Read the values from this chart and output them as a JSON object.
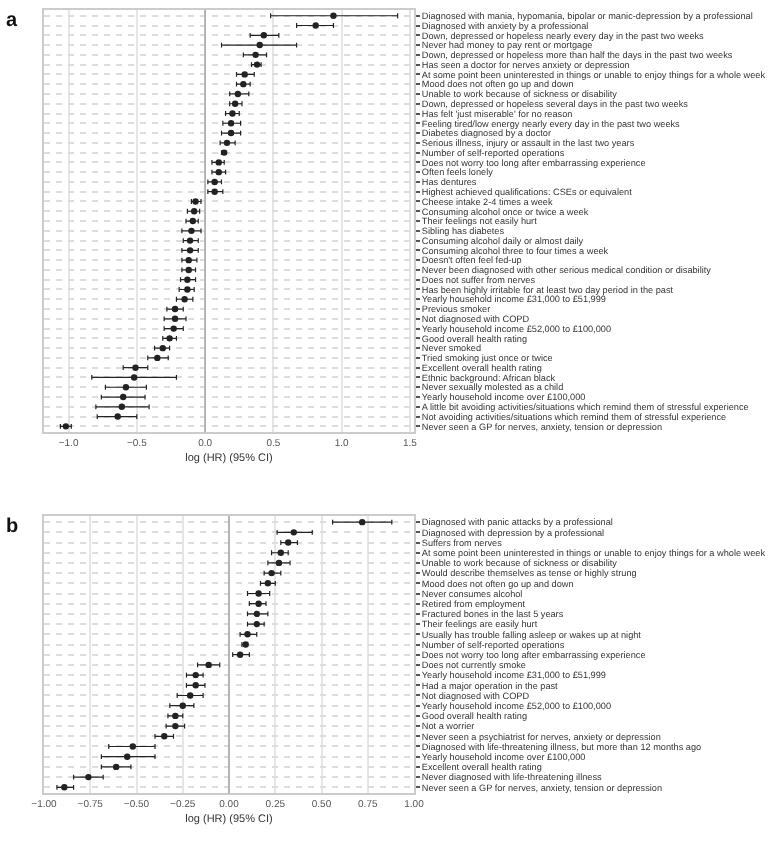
{
  "chart_data": [
    {
      "type": "scatter",
      "title": "a",
      "xlabel": "log (HR) (95% CI)",
      "orientation": "horizontal",
      "marker": "circle",
      "grid": true,
      "xlim": [
        -1.18,
        1.53
      ],
      "xticks": [
        {
          "value": -1.0,
          "label": "−1.0"
        },
        {
          "value": -0.5,
          "label": "−0.5"
        },
        {
          "value": 0.0,
          "label": "0.0"
        },
        {
          "value": 0.5,
          "label": "0.5"
        },
        {
          "value": 1.0,
          "label": "1.0"
        },
        {
          "value": 1.5,
          "label": "1.5"
        }
      ],
      "ref_lines": [
        {
          "axis": "x",
          "value": 0,
          "color": "#aaaaaa"
        }
      ],
      "categories": [
        "Diagnosed with mania, hypomania, bipolar or manic-depression by a professional",
        "Diagnosed with anxiety by a professional",
        "Down, depressed or hopeless nearly every day in the past two weeks",
        "Never had money to pay rent or mortgage",
        "Down, depressed or hopeless more than half the days in the past two weeks",
        "Has seen a doctor for nerves anxiety or depression",
        "At some point been uninterested in things or unable to enjoy things for a whole week",
        "Mood does not often go up and down",
        "Unable to work because of sickness or disability",
        "Down, depressed or hopeless several days in the past two weeks",
        "Has felt 'just miserable' for no reason",
        "Feeling tired/low energy nearly every day in the past two weeks",
        "Diabetes diagnosed by a doctor",
        "Serious illness, injury or assault in the last two years",
        "Number of self-reported operations",
        "Does not worry too long after embarrassing experience",
        "Often feels lonely",
        "Has dentures",
        "Highest achieved qualifications: CSEs or equivalent",
        "Cheese intake 2-4 times a week",
        "Consuming alcohol once or twice a week",
        "Their feelings not easily hurt",
        "Sibling has diabetes",
        "Consuming alcohol daily or almost daily",
        "Consuming alcohol three to four times a week",
        "Doesn't often feel fed-up",
        "Never been diagnosed with other serious medical condition or disability",
        "Does not suffer from nerves",
        "Has been highly irritable for at least two day period in the past",
        "Yearly household income £31,000 to £51,999",
        "Previous smoker",
        "Not diagnosed with COPD",
        "Yearly household income £52,000 to £100,000",
        "Good overall health rating",
        "Never smoked",
        "Tried smoking just once or twice",
        "Excellent overall health rating",
        "Ethnic background: African black",
        "Never sexually molested as a child",
        "Yearly household income over £100,000",
        "A little bit avoiding activities/situations which remind them of stressful experience",
        "Not avoiding activities/situations which remind them of stressful experience",
        "Never seen a GP for nerves, anxiety, tension or depression"
      ],
      "series": [
        {
          "color": "#222222",
          "values": [
            0.94,
            0.81,
            0.43,
            0.4,
            0.37,
            0.38,
            0.29,
            0.28,
            0.24,
            0.22,
            0.2,
            0.19,
            0.19,
            0.16,
            0.14,
            0.1,
            0.1,
            0.07,
            0.07,
            -0.07,
            -0.08,
            -0.09,
            -0.1,
            -0.11,
            -0.11,
            -0.12,
            -0.12,
            -0.13,
            -0.13,
            -0.15,
            -0.22,
            -0.22,
            -0.23,
            -0.26,
            -0.31,
            -0.35,
            -0.51,
            -0.52,
            -0.58,
            -0.6,
            -0.61,
            -0.64,
            -1.02
          ],
          "errors": [
            [
              0.48,
              1.41
            ],
            [
              0.67,
              0.94
            ],
            [
              0.33,
              0.54
            ],
            [
              0.12,
              0.67
            ],
            [
              0.28,
              0.45
            ],
            [
              0.34,
              0.41
            ],
            [
              0.23,
              0.36
            ],
            [
              0.23,
              0.33
            ],
            [
              0.18,
              0.32
            ],
            [
              0.18,
              0.27
            ],
            [
              0.15,
              0.25
            ],
            [
              0.13,
              0.26
            ],
            [
              0.12,
              0.26
            ],
            [
              0.11,
              0.22
            ],
            [
              0.12,
              0.15
            ],
            [
              0.05,
              0.14
            ],
            [
              0.05,
              0.15
            ],
            [
              0.02,
              0.12
            ],
            [
              0.02,
              0.13
            ],
            [
              -0.1,
              -0.03
            ],
            [
              -0.13,
              -0.04
            ],
            [
              -0.14,
              -0.05
            ],
            [
              -0.17,
              -0.03
            ],
            [
              -0.16,
              -0.05
            ],
            [
              -0.17,
              -0.05
            ],
            [
              -0.17,
              -0.06
            ],
            [
              -0.17,
              -0.07
            ],
            [
              -0.18,
              -0.07
            ],
            [
              -0.19,
              -0.08
            ],
            [
              -0.21,
              -0.09
            ],
            [
              -0.28,
              -0.16
            ],
            [
              -0.3,
              -0.14
            ],
            [
              -0.3,
              -0.16
            ],
            [
              -0.31,
              -0.21
            ],
            [
              -0.37,
              -0.26
            ],
            [
              -0.42,
              -0.27
            ],
            [
              -0.6,
              -0.42
            ],
            [
              -0.83,
              -0.21
            ],
            [
              -0.73,
              -0.43
            ],
            [
              -0.76,
              -0.44
            ],
            [
              -0.8,
              -0.41
            ],
            [
              -0.79,
              -0.5
            ],
            [
              -1.06,
              -0.98
            ]
          ]
        }
      ]
    },
    {
      "type": "scatter",
      "title": "b",
      "xlabel": "log (HR) (95% CI)",
      "orientation": "horizontal",
      "marker": "circle",
      "grid": true,
      "xlim": [
        -1.0,
        1.0
      ],
      "xticks": [
        {
          "value": -1.0,
          "label": "−1.00"
        },
        {
          "value": -0.75,
          "label": "−0.75"
        },
        {
          "value": -0.5,
          "label": "−0.50"
        },
        {
          "value": -0.25,
          "label": "−0.25"
        },
        {
          "value": 0.0,
          "label": "0.00"
        },
        {
          "value": 0.25,
          "label": "0.25"
        },
        {
          "value": 0.5,
          "label": "0.50"
        },
        {
          "value": 0.75,
          "label": "0.75"
        },
        {
          "value": 1.0,
          "label": "1.00"
        }
      ],
      "ref_lines": [
        {
          "axis": "x",
          "value": 0,
          "color": "#aaaaaa"
        }
      ],
      "categories": [
        "Diagnosed with panic attacks by a professional",
        "Diagnosed with depression by a professional",
        "Suffers from nerves",
        "At some point been uninterested in things or unable to enjoy things for a whole week",
        "Unable to work because of sickness or disability",
        "Would describe themselves as tense or highly strung",
        "Mood does not often go up and down",
        "Never consumes alcohol",
        "Retired from employment",
        "Fractured bones in the last 5 years",
        "Their feelings are easily hurt",
        "Usually has trouble falling asleep or wakes up at night",
        "Number of self-reported operations",
        "Does not worry too long after embarrassing experience",
        "Does not currently smoke",
        "Yearly household income £31,000 to £51,999",
        "Had a major operation in the past",
        "Not diagnosed with COPD",
        "Yearly household income £52,000 to £100,000",
        "Good overall health rating",
        "Not a worrier",
        "Never seen a psychiatrist for nerves, anxiety or depression",
        "Diagnosed with life-threatening illness, but more than 12 months ago",
        "Yearly household income over £100,000",
        "Excellent overall health rating",
        "Never diagnosed with life-threatening illness",
        "Never seen a GP for nerves, anxiety, tension or depression"
      ],
      "series": [
        {
          "color": "#222222",
          "values": [
            0.72,
            0.35,
            0.32,
            0.28,
            0.27,
            0.23,
            0.21,
            0.16,
            0.16,
            0.15,
            0.15,
            0.1,
            0.09,
            0.06,
            -0.11,
            -0.18,
            -0.18,
            -0.21,
            -0.25,
            -0.29,
            -0.29,
            -0.35,
            -0.52,
            -0.55,
            -0.61,
            -0.76,
            -0.89
          ],
          "errors": [
            [
              0.56,
              0.88
            ],
            [
              0.26,
              0.45
            ],
            [
              0.28,
              0.37
            ],
            [
              0.23,
              0.32
            ],
            [
              0.21,
              0.33
            ],
            [
              0.19,
              0.28
            ],
            [
              0.17,
              0.25
            ],
            [
              0.1,
              0.22
            ],
            [
              0.11,
              0.2
            ],
            [
              0.1,
              0.21
            ],
            [
              0.1,
              0.19
            ],
            [
              0.06,
              0.15
            ],
            [
              0.07,
              0.1
            ],
            [
              0.02,
              0.11
            ],
            [
              -0.17,
              -0.05
            ],
            [
              -0.23,
              -0.14
            ],
            [
              -0.23,
              -0.13
            ],
            [
              -0.28,
              -0.14
            ],
            [
              -0.32,
              -0.19
            ],
            [
              -0.33,
              -0.25
            ],
            [
              -0.34,
              -0.24
            ],
            [
              -0.4,
              -0.3
            ],
            [
              -0.65,
              -0.4
            ],
            [
              -0.69,
              -0.4
            ],
            [
              -0.69,
              -0.53
            ],
            [
              -0.84,
              -0.68
            ],
            [
              -0.93,
              -0.84
            ]
          ]
        }
      ]
    }
  ]
}
